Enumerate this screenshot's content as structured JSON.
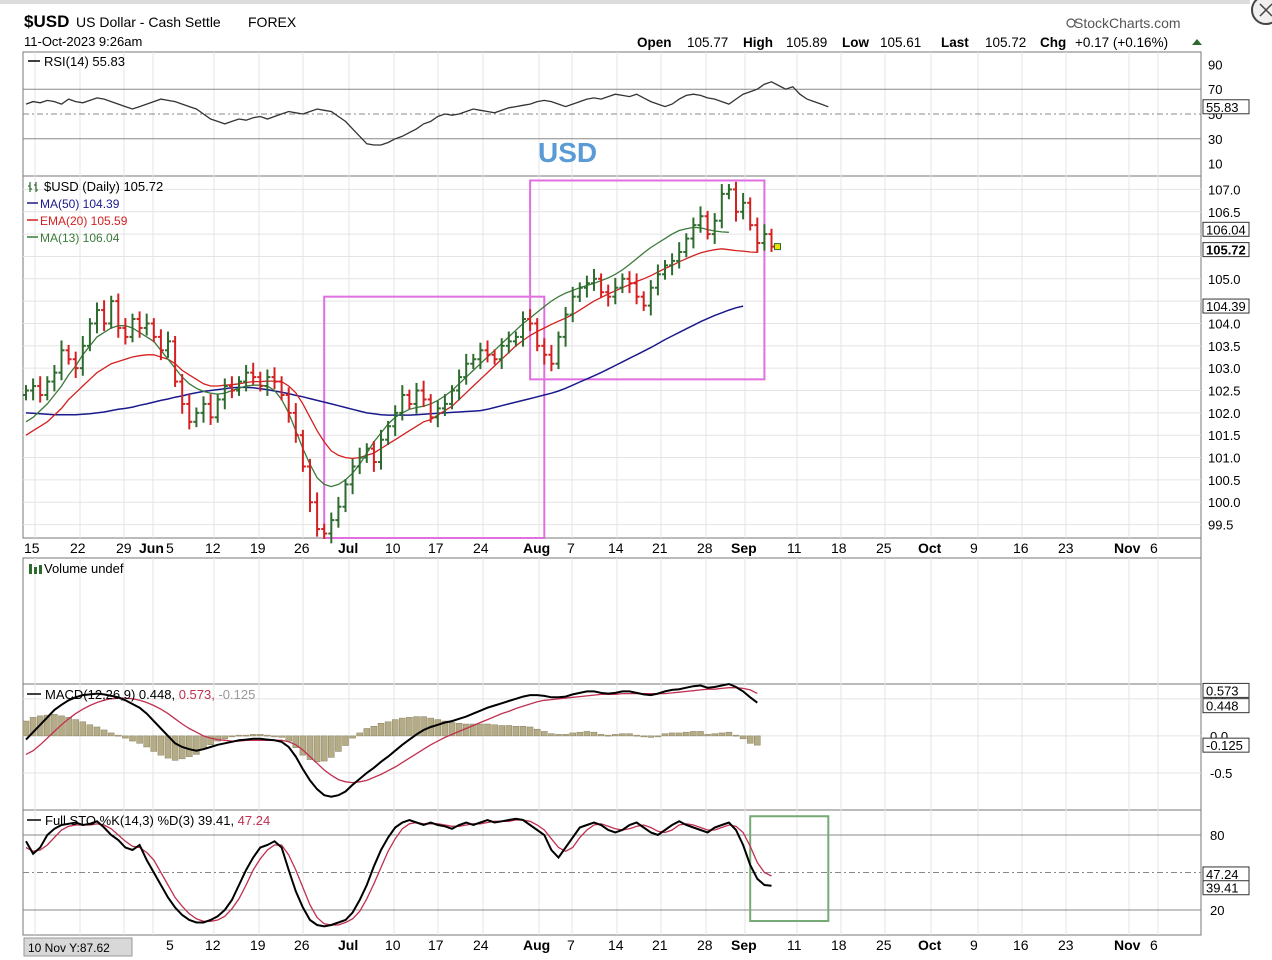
{
  "header": {
    "symbol": "$USD",
    "name": "US Dollar - Cash Settle",
    "exchange": "FOREX",
    "datetime": "11-Oct-2023 9:26am",
    "brand": "StockCharts.com",
    "open_label": "Open",
    "open": "105.77",
    "high_label": "High",
    "high": "105.89",
    "low_label": "Low",
    "low": "105.61",
    "last_label": "Last",
    "last": "105.72",
    "chg_label": "Chg",
    "chg": "+0.17 (+0.16%)"
  },
  "annotation_text": "USD",
  "colors": {
    "up_bar": "#2e6b2e",
    "down_bar": "#d42020",
    "ma50": "#1a1a8c",
    "ema20": "#d42020",
    "ma13": "#3a7a3a",
    "box": "#e070e0",
    "sto_box": "#77aa77",
    "hist": "#b4ab87",
    "annotation": "#5b9bd5"
  },
  "chart_data": [
    {
      "type": "line",
      "name": "rsi",
      "legend": "RSI(14) 55.83",
      "yticks": [
        90,
        70,
        50,
        30,
        10
      ],
      "tick_labels": [
        "90",
        "70",
        "50",
        "30",
        "10"
      ],
      "last_label": "55.83",
      "ylim": [
        0,
        100
      ],
      "levels": [
        70,
        30
      ],
      "midline": 50,
      "values": [
        58,
        60,
        59,
        61,
        60,
        58,
        62,
        60,
        59,
        61,
        63,
        62,
        60,
        58,
        56,
        54,
        56,
        58,
        60,
        62,
        61,
        60,
        58,
        56,
        54,
        50,
        46,
        44,
        42,
        44,
        46,
        45,
        47,
        48,
        46,
        48,
        50,
        52,
        51,
        50,
        52,
        54,
        53,
        52,
        48,
        44,
        38,
        32,
        26,
        25,
        25,
        27,
        30,
        32,
        35,
        38,
        42,
        44,
        48,
        50,
        49,
        50,
        52,
        54,
        53,
        52,
        51,
        53,
        55,
        56,
        57,
        58,
        60,
        61,
        60,
        58,
        56,
        58,
        60,
        62,
        63,
        62,
        64,
        66,
        65,
        64,
        66,
        63,
        60,
        58,
        56,
        58,
        62,
        65,
        66,
        65,
        63,
        62,
        60,
        58,
        62,
        66,
        68,
        70,
        74,
        76,
        73,
        70,
        72,
        66,
        62,
        60,
        58,
        55.83
      ]
    },
    {
      "type": "ohlc",
      "name": "price",
      "title": "$USD (Daily) 105.72",
      "legend": [
        "MA(50) 104.39",
        "EMA(20) 105.59",
        "MA(13) 106.04"
      ],
      "yticks": [
        107.0,
        106.5,
        106.0,
        105.5,
        105.0,
        104.5,
        104.0,
        103.5,
        103.0,
        102.5,
        102.0,
        101.5,
        101.0,
        100.5,
        100.0,
        99.5
      ],
      "tick_labels": [
        "107.0",
        "106.5",
        "105.0",
        "104.0",
        "103.5",
        "103.0",
        "102.5",
        "102.0",
        "101.5",
        "101.0",
        "100.5",
        "100.0",
        "99.5"
      ],
      "tick_values": [
        107.0,
        106.5,
        105.0,
        104.0,
        103.5,
        103.0,
        102.5,
        102.0,
        101.5,
        101.0,
        100.5,
        100.0,
        99.5
      ],
      "price_labels": [
        {
          "text": "106.04",
          "value": 106.04
        },
        {
          "text": "105.72",
          "value": 105.72
        },
        {
          "text": "104.39",
          "value": 104.39
        }
      ],
      "ylim": [
        99.2,
        107.3
      ],
      "x_labels": [
        "15",
        "22",
        "29",
        "Jun",
        "5",
        "12",
        "19",
        "26",
        "Jul",
        "10",
        "17",
        "24",
        "Aug",
        "7",
        "14",
        "21",
        "28",
        "Sep",
        "11",
        "18",
        "25",
        "Oct",
        "9",
        "16",
        "23",
        "Nov",
        "6"
      ],
      "close": [
        102.5,
        102.6,
        102.4,
        102.7,
        102.9,
        103.4,
        103.2,
        103.0,
        103.5,
        104.0,
        104.3,
        104.0,
        104.5,
        103.9,
        103.7,
        104.1,
        103.9,
        104.0,
        103.7,
        103.4,
        103.6,
        102.7,
        102.2,
        101.8,
        102.0,
        102.2,
        101.9,
        102.3,
        102.6,
        102.5,
        102.7,
        102.9,
        102.8,
        102.6,
        102.8,
        102.7,
        102.4,
        102.0,
        101.5,
        100.8,
        100.0,
        99.4,
        99.3,
        99.6,
        99.9,
        100.4,
        100.8,
        101.0,
        101.2,
        100.9,
        101.4,
        101.7,
        102.0,
        102.4,
        102.2,
        102.5,
        102.3,
        101.9,
        102.1,
        102.2,
        102.5,
        102.8,
        103.1,
        103.2,
        103.4,
        103.3,
        103.2,
        103.5,
        103.6,
        103.7,
        104.1,
        104.0,
        103.5,
        103.3,
        103.1,
        103.7,
        104.2,
        104.6,
        104.8,
        104.9,
        105.0,
        104.7,
        104.6,
        104.8,
        105.0,
        104.9,
        104.6,
        104.4,
        104.8,
        105.1,
        105.3,
        105.4,
        105.6,
        105.9,
        106.2,
        106.4,
        106.0,
        106.3,
        106.9,
        107.0,
        106.5,
        106.7,
        106.2,
        105.8,
        106.0,
        105.72
      ],
      "ma50": [
        102.0,
        101.99,
        101.98,
        101.97,
        101.96,
        101.96,
        101.96,
        101.96,
        101.97,
        101.98,
        102.0,
        102.02,
        102.05,
        102.08,
        102.1,
        102.13,
        102.17,
        102.2,
        102.24,
        102.28,
        102.31,
        102.35,
        102.38,
        102.42,
        102.45,
        102.48,
        102.5,
        102.52,
        102.54,
        102.56,
        102.57,
        102.57,
        102.56,
        102.54,
        102.52,
        102.49,
        102.46,
        102.43,
        102.39,
        102.36,
        102.32,
        102.28,
        102.24,
        102.2,
        102.16,
        102.12,
        102.08,
        102.04,
        102.0,
        101.98,
        101.96,
        101.95,
        101.95,
        101.95,
        101.95,
        101.96,
        101.97,
        101.98,
        101.99,
        102.0,
        102.01,
        102.02,
        102.03,
        102.04,
        102.05,
        102.08,
        102.12,
        102.16,
        102.2,
        102.24,
        102.28,
        102.32,
        102.36,
        102.4,
        102.44,
        102.49,
        102.55,
        102.62,
        102.69,
        102.76,
        102.83,
        102.9,
        102.98,
        103.06,
        103.14,
        103.22,
        103.3,
        103.38,
        103.46,
        103.55,
        103.64,
        103.72,
        103.8,
        103.88,
        103.96,
        104.04,
        104.11,
        104.18,
        104.24,
        104.3,
        104.35,
        104.39
      ],
      "ema20": [
        101.5,
        101.6,
        101.7,
        101.8,
        101.95,
        102.1,
        102.3,
        102.45,
        102.6,
        102.75,
        102.9,
        103.0,
        103.1,
        103.15,
        103.2,
        103.25,
        103.28,
        103.3,
        103.3,
        103.25,
        103.2,
        103.1,
        102.95,
        102.85,
        102.75,
        102.65,
        102.6,
        102.6,
        102.62,
        102.63,
        102.65,
        102.68,
        102.7,
        102.7,
        102.71,
        102.71,
        102.7,
        102.6,
        102.45,
        102.2,
        101.9,
        101.6,
        101.35,
        101.15,
        101.05,
        101.0,
        100.98,
        101.0,
        101.05,
        101.1,
        101.2,
        101.3,
        101.4,
        101.5,
        101.6,
        101.7,
        101.8,
        101.85,
        101.95,
        102.05,
        102.15,
        102.3,
        102.45,
        102.6,
        102.75,
        102.9,
        103.05,
        103.2,
        103.35,
        103.5,
        103.62,
        103.73,
        103.82,
        103.9,
        103.98,
        104.05,
        104.12,
        104.2,
        104.3,
        104.4,
        104.5,
        104.58,
        104.66,
        104.73,
        104.8,
        104.87,
        104.94,
        105.0,
        105.07,
        105.15,
        105.23,
        105.3,
        105.38,
        105.45,
        105.52,
        105.58,
        105.62,
        105.65,
        105.67,
        105.65,
        105.63,
        105.62,
        105.6,
        105.59
      ],
      "ma13": [
        101.8,
        101.9,
        102.05,
        102.2,
        102.4,
        102.6,
        102.85,
        103.05,
        103.3,
        103.5,
        103.7,
        103.8,
        103.9,
        103.95,
        103.95,
        103.9,
        103.8,
        103.7,
        103.6,
        103.4,
        103.2,
        103.0,
        102.8,
        102.65,
        102.55,
        102.48,
        102.44,
        102.42,
        102.44,
        102.5,
        102.55,
        102.6,
        102.62,
        102.62,
        102.6,
        102.5,
        102.3,
        102.0,
        101.6,
        101.2,
        100.85,
        100.55,
        100.4,
        100.35,
        100.4,
        100.5,
        100.65,
        100.85,
        101.1,
        101.35,
        101.55,
        101.75,
        101.9,
        102.0,
        102.08,
        102.12,
        102.15,
        102.2,
        102.28,
        102.38,
        102.5,
        102.65,
        102.8,
        102.95,
        103.1,
        103.25,
        103.4,
        103.55,
        103.7,
        103.85,
        104.0,
        104.12,
        104.25,
        104.38,
        104.5,
        104.6,
        104.68,
        104.74,
        104.8,
        104.85,
        104.9,
        104.96,
        105.02,
        105.1,
        105.2,
        105.32,
        105.45,
        105.58,
        105.7,
        105.8,
        105.9,
        106.0,
        106.08,
        106.12,
        106.15,
        106.14,
        106.1,
        106.07,
        106.05,
        106.04
      ],
      "boxes": [
        {
          "x_from": 42,
          "x_to": 73,
          "y_from": 99.2,
          "y_to": 104.6
        },
        {
          "x_from": 71,
          "x_to": 104,
          "y_from": 102.75,
          "y_to": 107.2
        }
      ]
    },
    {
      "type": "bar",
      "name": "volume",
      "title": "Volume undef",
      "values": []
    },
    {
      "type": "line",
      "name": "macd",
      "legend": [
        "MACD(12,26,9) 0.448, ",
        "0.573, ",
        "-0.125"
      ],
      "yticks": [
        0.5,
        0.0,
        -0.5
      ],
      "tick_labels": [
        "0.5",
        "0.0",
        "-0.5"
      ],
      "price_labels": [
        {
          "text": "0.573",
          "value": 0.573
        },
        {
          "text": "0.448",
          "value": 0.448
        },
        {
          "text": "-0.125",
          "value": -0.125
        }
      ],
      "ylim": [
        -1.0,
        0.7
      ],
      "macd": [
        -0.05,
        0.05,
        0.15,
        0.25,
        0.35,
        0.42,
        0.48,
        0.52,
        0.55,
        0.56,
        0.57,
        0.56,
        0.54,
        0.52,
        0.48,
        0.43,
        0.38,
        0.3,
        0.2,
        0.1,
        0.0,
        -0.1,
        -0.15,
        -0.18,
        -0.2,
        -0.18,
        -0.15,
        -0.12,
        -0.1,
        -0.08,
        -0.06,
        -0.05,
        -0.04,
        -0.04,
        -0.05,
        -0.06,
        -0.08,
        -0.15,
        -0.28,
        -0.45,
        -0.6,
        -0.72,
        -0.8,
        -0.82,
        -0.8,
        -0.75,
        -0.66,
        -0.58,
        -0.5,
        -0.43,
        -0.35,
        -0.28,
        -0.2,
        -0.12,
        -0.05,
        0.02,
        0.08,
        0.12,
        0.15,
        0.18,
        0.2,
        0.23,
        0.26,
        0.3,
        0.34,
        0.38,
        0.41,
        0.44,
        0.47,
        0.5,
        0.53,
        0.55,
        0.55,
        0.54,
        0.52,
        0.52,
        0.53,
        0.56,
        0.58,
        0.6,
        0.6,
        0.58,
        0.57,
        0.58,
        0.6,
        0.6,
        0.58,
        0.56,
        0.55,
        0.57,
        0.6,
        0.62,
        0.63,
        0.65,
        0.67,
        0.68,
        0.65,
        0.66,
        0.68,
        0.7,
        0.66,
        0.6,
        0.52,
        0.448
      ],
      "signal": [
        -0.25,
        -0.2,
        -0.12,
        -0.03,
        0.06,
        0.15,
        0.23,
        0.3,
        0.36,
        0.41,
        0.45,
        0.48,
        0.5,
        0.51,
        0.51,
        0.5,
        0.48,
        0.45,
        0.41,
        0.36,
        0.3,
        0.23,
        0.16,
        0.1,
        0.05,
        0.0,
        -0.03,
        -0.05,
        -0.06,
        -0.07,
        -0.07,
        -0.06,
        -0.06,
        -0.06,
        -0.06,
        -0.06,
        -0.06,
        -0.08,
        -0.12,
        -0.19,
        -0.28,
        -0.37,
        -0.46,
        -0.53,
        -0.59,
        -0.62,
        -0.63,
        -0.62,
        -0.6,
        -0.56,
        -0.52,
        -0.47,
        -0.42,
        -0.36,
        -0.3,
        -0.24,
        -0.18,
        -0.12,
        -0.07,
        -0.02,
        0.02,
        0.06,
        0.1,
        0.14,
        0.18,
        0.22,
        0.26,
        0.3,
        0.33,
        0.37,
        0.4,
        0.43,
        0.46,
        0.48,
        0.49,
        0.5,
        0.51,
        0.52,
        0.53,
        0.54,
        0.55,
        0.56,
        0.56,
        0.56,
        0.57,
        0.57,
        0.57,
        0.57,
        0.57,
        0.57,
        0.57,
        0.58,
        0.59,
        0.6,
        0.61,
        0.62,
        0.63,
        0.63,
        0.64,
        0.65,
        0.65,
        0.64,
        0.62,
        0.573
      ]
    },
    {
      "type": "line",
      "name": "stochastic",
      "legend": [
        "Full STO %K(14,3) %D(3) 39.41, ",
        "47.24"
      ],
      "yticks": [
        80,
        50,
        20
      ],
      "tick_labels": [
        "80",
        "20"
      ],
      "price_labels": [
        {
          "text": "47.24",
          "value": 47.24
        },
        {
          "text": "39.41",
          "value": 39.41
        }
      ],
      "ylim": [
        0,
        100
      ],
      "levels": [
        80,
        20
      ],
      "midline": 50,
      "k": [
        75,
        65,
        70,
        80,
        85,
        88,
        89,
        90,
        88,
        89,
        91,
        86,
        80,
        76,
        70,
        68,
        72,
        60,
        50,
        40,
        30,
        22,
        16,
        12,
        10,
        10,
        12,
        15,
        20,
        28,
        40,
        52,
        62,
        70,
        72,
        75,
        70,
        52,
        35,
        22,
        12,
        8,
        7,
        8,
        10,
        12,
        18,
        28,
        40,
        55,
        68,
        78,
        86,
        90,
        92,
        90,
        88,
        90,
        88,
        87,
        85,
        88,
        90,
        88,
        90,
        92,
        90,
        91,
        92,
        93,
        92,
        88,
        84,
        80,
        68,
        62,
        70,
        78,
        86,
        88,
        90,
        88,
        84,
        82,
        84,
        88,
        90,
        86,
        82,
        80,
        84,
        88,
        91,
        88,
        86,
        84,
        82,
        86,
        88,
        90,
        84,
        72,
        56,
        45,
        40,
        39.41
      ],
      "d": [
        70,
        67,
        68,
        72,
        78,
        84,
        87,
        88,
        88,
        88,
        89,
        88,
        85,
        80,
        75,
        71,
        70,
        66,
        60,
        50,
        40,
        30,
        23,
        17,
        13,
        11,
        11,
        12,
        15,
        21,
        29,
        40,
        52,
        61,
        68,
        72,
        72,
        64,
        52,
        38,
        24,
        14,
        9,
        8,
        8,
        10,
        13,
        19,
        29,
        41,
        54,
        67,
        77,
        85,
        89,
        90,
        89,
        89,
        89,
        88,
        87,
        87,
        88,
        89,
        89,
        90,
        91,
        91,
        91,
        92,
        92,
        91,
        88,
        84,
        77,
        70,
        67,
        70,
        78,
        84,
        88,
        89,
        87,
        85,
        84,
        85,
        87,
        88,
        86,
        83,
        82,
        84,
        88,
        89,
        88,
        86,
        84,
        84,
        86,
        88,
        87,
        82,
        71,
        58,
        50,
        47.24
      ],
      "box": {
        "x_from": 102,
        "x_to": 113,
        "y_from": 95,
        "y_to": 0
      }
    }
  ],
  "bottom_label": "10 Nov Y:87.62"
}
